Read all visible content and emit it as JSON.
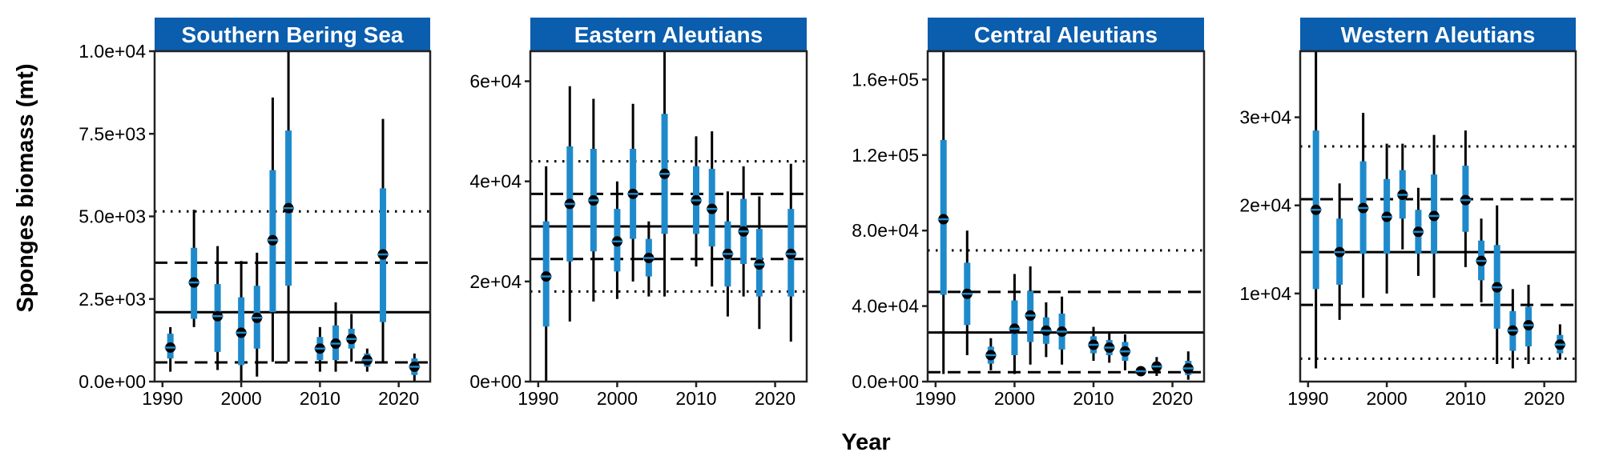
{
  "figure": {
    "xlabel": "Year",
    "ylabel": "Sponges biomass (mt)"
  },
  "style": {
    "strip_color": "#0B5DAD",
    "interval_color": "#1F8ACB",
    "line_color": "#000000",
    "point_color": "#000000"
  },
  "chart_data": [
    {
      "type": "pointrange",
      "title": "Southern Bering Sea",
      "xlim": [
        1989,
        2024
      ],
      "ylim": [
        0,
        10000
      ],
      "xticks": [
        1990,
        2000,
        2010,
        2020
      ],
      "yticks": [
        0,
        2500,
        5000,
        7500,
        10000
      ],
      "ytick_labels": [
        "0.0e+00",
        "2.5e+03",
        "5.0e+03",
        "7.5e+03",
        "1.0e+04"
      ],
      "hlines": {
        "mean": 2100,
        "sd_lower": 580,
        "sd_upper": 3600,
        "sd2_lower": null,
        "sd2_upper": 5150
      },
      "points": [
        {
          "x": 1991,
          "y": 1030,
          "lo95": 300,
          "hi95": 1650,
          "lo50": 700,
          "hi50": 1450
        },
        {
          "x": 1994,
          "y": 3000,
          "lo95": 1650,
          "hi95": 5200,
          "lo50": 1900,
          "hi50": 4050
        },
        {
          "x": 1997,
          "y": 1980,
          "lo95": 350,
          "hi95": 4100,
          "lo50": 900,
          "hi50": 2950
        },
        {
          "x": 2000,
          "y": 1480,
          "lo95": 0,
          "hi95": 3650,
          "lo50": 500,
          "hi50": 2550
        },
        {
          "x": 2002,
          "y": 1930,
          "lo95": 150,
          "hi95": 3900,
          "lo50": 1000,
          "hi50": 2900
        },
        {
          "x": 2004,
          "y": 4280,
          "lo95": 600,
          "hi95": 8600,
          "lo50": 2100,
          "hi50": 6400
        },
        {
          "x": 2006,
          "y": 5250,
          "lo95": 600,
          "hi95": 10000,
          "lo50": 2900,
          "hi50": 7600
        },
        {
          "x": 2010,
          "y": 1000,
          "lo95": 300,
          "hi95": 1650,
          "lo50": 650,
          "hi50": 1350
        },
        {
          "x": 2012,
          "y": 1150,
          "lo95": 300,
          "hi95": 2400,
          "lo50": 650,
          "hi50": 1700
        },
        {
          "x": 2014,
          "y": 1290,
          "lo95": 600,
          "hi95": 2050,
          "lo50": 1000,
          "hi50": 1600
        },
        {
          "x": 2016,
          "y": 650,
          "lo95": 300,
          "hi95": 1000,
          "lo50": 450,
          "hi50": 850
        },
        {
          "x": 2018,
          "y": 3850,
          "lo95": 600,
          "hi95": 7950,
          "lo50": 1800,
          "hi50": 5850
        },
        {
          "x": 2022,
          "y": 450,
          "lo95": 0,
          "hi95": 850,
          "lo50": 200,
          "hi50": 700
        }
      ]
    },
    {
      "type": "pointrange",
      "title": "Eastern Aleutians",
      "xlim": [
        1989,
        2024
      ],
      "ylim": [
        0,
        66000
      ],
      "xticks": [
        1990,
        2000,
        2010,
        2020
      ],
      "yticks": [
        0,
        20000,
        40000,
        60000
      ],
      "ytick_labels": [
        "0e+00",
        "2e+04",
        "4e+04",
        "6e+04"
      ],
      "hlines": {
        "mean": 31000,
        "sd_lower": 24500,
        "sd_upper": 37500,
        "sd2_lower": 18000,
        "sd2_upper": 44000
      },
      "points": [
        {
          "x": 1991,
          "y": 21000,
          "lo95": 0,
          "hi95": 43000,
          "lo50": 11000,
          "hi50": 32000
        },
        {
          "x": 1994,
          "y": 35500,
          "lo95": 12000,
          "hi95": 59000,
          "lo50": 24000,
          "hi50": 47000
        },
        {
          "x": 1997,
          "y": 36200,
          "lo95": 16000,
          "hi95": 56500,
          "lo50": 26000,
          "hi50": 46500
        },
        {
          "x": 2000,
          "y": 28000,
          "lo95": 16500,
          "hi95": 40000,
          "lo50": 22000,
          "hi50": 34500
        },
        {
          "x": 2002,
          "y": 37500,
          "lo95": 20000,
          "hi95": 55500,
          "lo50": 28500,
          "hi50": 46500
        },
        {
          "x": 2004,
          "y": 24700,
          "lo95": 17000,
          "hi95": 32000,
          "lo50": 21000,
          "hi50": 28500
        },
        {
          "x": 2006,
          "y": 41500,
          "lo95": 17000,
          "hi95": 66000,
          "lo50": 29500,
          "hi50": 53500
        },
        {
          "x": 2010,
          "y": 36200,
          "lo95": 23000,
          "hi95": 49000,
          "lo50": 29500,
          "hi50": 43000
        },
        {
          "x": 2012,
          "y": 34500,
          "lo95": 19000,
          "hi95": 50000,
          "lo50": 27000,
          "hi50": 42500
        },
        {
          "x": 2014,
          "y": 25500,
          "lo95": 13000,
          "hi95": 38000,
          "lo50": 19000,
          "hi50": 32000
        },
        {
          "x": 2016,
          "y": 30000,
          "lo95": 17000,
          "hi95": 43000,
          "lo50": 23500,
          "hi50": 36500
        },
        {
          "x": 2018,
          "y": 23400,
          "lo95": 10500,
          "hi95": 37000,
          "lo50": 17000,
          "hi50": 30500
        },
        {
          "x": 2022,
          "y": 25500,
          "lo95": 8000,
          "hi95": 43500,
          "lo50": 17000,
          "hi50": 34500
        }
      ]
    },
    {
      "type": "pointrange",
      "title": "Central Aleutians",
      "xlim": [
        1989,
        2024
      ],
      "ylim": [
        0,
        175000
      ],
      "xticks": [
        1990,
        2000,
        2010,
        2020
      ],
      "yticks": [
        0,
        40000,
        80000,
        120000,
        160000
      ],
      "ytick_labels": [
        "0.0e+00",
        "4.0e+04",
        "8.0e+04",
        "1.2e+05",
        "1.6e+05"
      ],
      "hlines": {
        "mean": 26000,
        "sd_lower": 5000,
        "sd_upper": 47500,
        "sd2_lower": null,
        "sd2_upper": 69500
      },
      "points": [
        {
          "x": 1991,
          "y": 86000,
          "lo95": 4000,
          "hi95": 175000,
          "lo50": 46000,
          "hi50": 128000
        },
        {
          "x": 1994,
          "y": 46500,
          "lo95": 14000,
          "hi95": 80000,
          "lo50": 30000,
          "hi50": 63000
        },
        {
          "x": 1997,
          "y": 14000,
          "lo95": 6000,
          "hi95": 23000,
          "lo50": 9500,
          "hi50": 18500
        },
        {
          "x": 2000,
          "y": 28000,
          "lo95": 4000,
          "hi95": 57000,
          "lo50": 14000,
          "hi50": 43000
        },
        {
          "x": 2002,
          "y": 35000,
          "lo95": 9000,
          "hi95": 61000,
          "lo50": 21000,
          "hi50": 48000
        },
        {
          "x": 2004,
          "y": 27000,
          "lo95": 13000,
          "hi95": 42000,
          "lo50": 20000,
          "hi50": 34000
        },
        {
          "x": 2006,
          "y": 26500,
          "lo95": 9000,
          "hi95": 45000,
          "lo50": 17000,
          "hi50": 36000
        },
        {
          "x": 2010,
          "y": 19500,
          "lo95": 11000,
          "hi95": 29000,
          "lo50": 15000,
          "hi50": 24000
        },
        {
          "x": 2012,
          "y": 18000,
          "lo95": 10000,
          "hi95": 26000,
          "lo50": 14000,
          "hi50": 22000
        },
        {
          "x": 2014,
          "y": 16000,
          "lo95": 6000,
          "hi95": 25000,
          "lo50": 11000,
          "hi50": 21000
        },
        {
          "x": 2016,
          "y": 5500,
          "lo95": 3000,
          "hi95": 8000,
          "lo50": 4200,
          "hi50": 6800
        },
        {
          "x": 2018,
          "y": 8000,
          "lo95": 3000,
          "hi95": 13000,
          "lo50": 5500,
          "hi50": 10500
        },
        {
          "x": 2022,
          "y": 7000,
          "lo95": 1000,
          "hi95": 16000,
          "lo50": 3500,
          "hi50": 11000
        }
      ]
    },
    {
      "type": "pointrange",
      "title": "Western Aleutians",
      "xlim": [
        1989,
        2024
      ],
      "ylim": [
        0,
        37500
      ],
      "xticks": [
        1990,
        2000,
        2010,
        2020
      ],
      "yticks": [
        10000,
        20000,
        30000
      ],
      "ytick_labels": [
        "1e+04",
        "2e+04",
        "3e+04"
      ],
      "hlines": {
        "mean": 14700,
        "sd_lower": 8700,
        "sd_upper": 20700,
        "sd2_lower": 2600,
        "sd2_upper": 26700
      },
      "points": [
        {
          "x": 1991,
          "y": 19500,
          "lo95": 1500,
          "hi95": 37500,
          "lo50": 10500,
          "hi50": 28500
        },
        {
          "x": 1994,
          "y": 14700,
          "lo95": 7000,
          "hi95": 22500,
          "lo50": 11000,
          "hi50": 18500
        },
        {
          "x": 1997,
          "y": 19700,
          "lo95": 9500,
          "hi95": 30500,
          "lo50": 14500,
          "hi50": 25000
        },
        {
          "x": 2000,
          "y": 18700,
          "lo95": 10000,
          "hi95": 27000,
          "lo50": 14500,
          "hi50": 23000
        },
        {
          "x": 2002,
          "y": 21200,
          "lo95": 15000,
          "hi95": 27000,
          "lo50": 18500,
          "hi50": 24000
        },
        {
          "x": 2004,
          "y": 17000,
          "lo95": 12000,
          "hi95": 22000,
          "lo50": 14500,
          "hi50": 19500
        },
        {
          "x": 2006,
          "y": 18800,
          "lo95": 9500,
          "hi95": 28000,
          "lo50": 14500,
          "hi50": 23500
        },
        {
          "x": 2010,
          "y": 20600,
          "lo95": 13000,
          "hi95": 28500,
          "lo50": 17000,
          "hi50": 24500
        },
        {
          "x": 2012,
          "y": 13700,
          "lo95": 9000,
          "hi95": 18500,
          "lo50": 11500,
          "hi50": 16000
        },
        {
          "x": 2014,
          "y": 10700,
          "lo95": 2000,
          "hi95": 20000,
          "lo50": 6000,
          "hi50": 15500
        },
        {
          "x": 2016,
          "y": 5800,
          "lo95": 1500,
          "hi95": 10500,
          "lo50": 3500,
          "hi50": 8000
        },
        {
          "x": 2018,
          "y": 6400,
          "lo95": 2000,
          "hi95": 11000,
          "lo50": 4000,
          "hi50": 8500
        },
        {
          "x": 2022,
          "y": 4200,
          "lo95": 2500,
          "hi95": 6500,
          "lo50": 3200,
          "hi50": 5300
        }
      ]
    }
  ]
}
